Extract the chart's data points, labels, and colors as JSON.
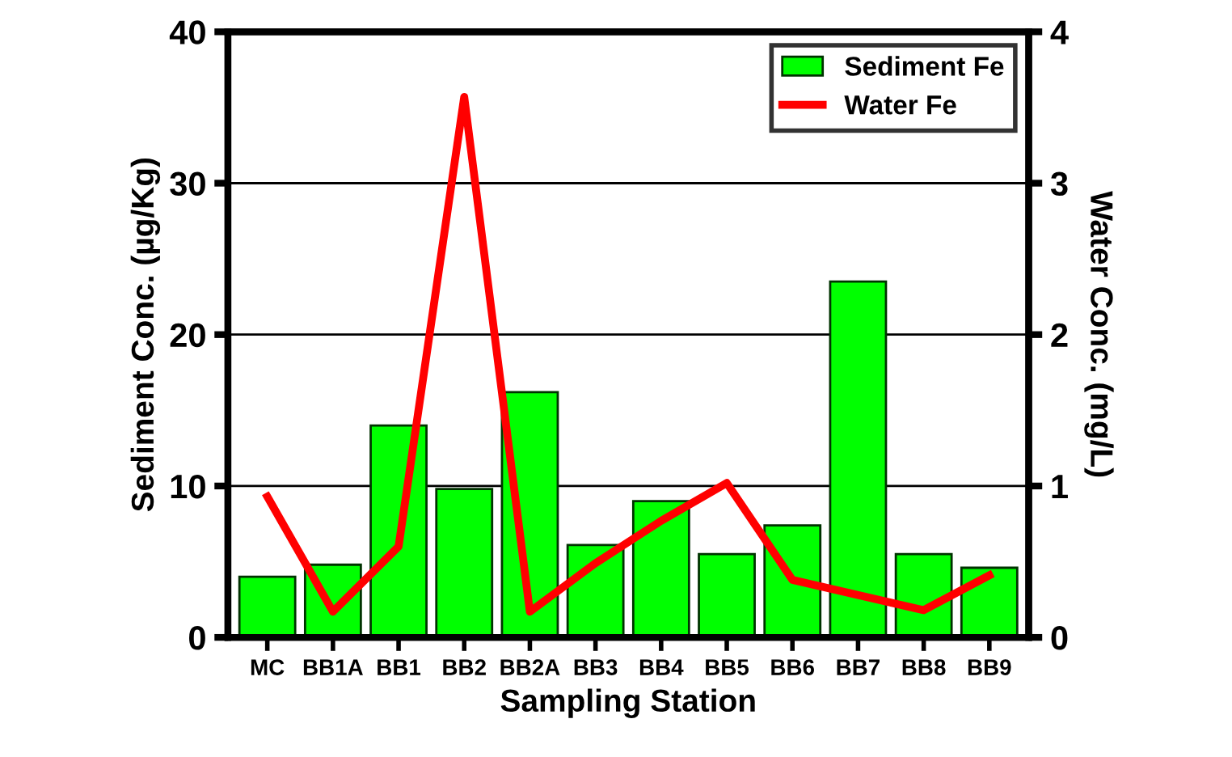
{
  "chart_data": {
    "type": "bar",
    "xlabel": "Sampling Station",
    "ylabel": "Sediment Conc. (µg/Kg)",
    "y2label": "Water Conc. (mg/L)",
    "categories": [
      "MC",
      "BB1A",
      "BB1",
      "BB2",
      "BB2A",
      "BB3",
      "BB4",
      "BB5",
      "BB6",
      "BB7",
      "BB8",
      "BB9"
    ],
    "series": [
      {
        "name": "Sediment Fe",
        "color": "#00ff00",
        "values": [
          4.0,
          4.8,
          14.0,
          9.8,
          16.2,
          6.1,
          9.0,
          5.5,
          7.4,
          23.5,
          5.5,
          4.6
        ]
      },
      {
        "name": "Water Fe",
        "type": "line",
        "axis": "y2",
        "color": "#ff0000",
        "values": [
          0.93,
          0.17,
          0.6,
          3.57,
          0.17,
          0.49,
          0.77,
          1.02,
          0.38,
          0.28,
          0.18,
          0.41
        ]
      }
    ],
    "ylim": [
      0,
      40
    ],
    "yticks": [
      0,
      10,
      20,
      30,
      40
    ],
    "y2lim": [
      0,
      4
    ],
    "y2ticks": [
      0,
      1,
      2,
      3,
      4
    ],
    "grid": "y",
    "legend": "top right",
    "marker": "none",
    "line_style": "solid"
  }
}
